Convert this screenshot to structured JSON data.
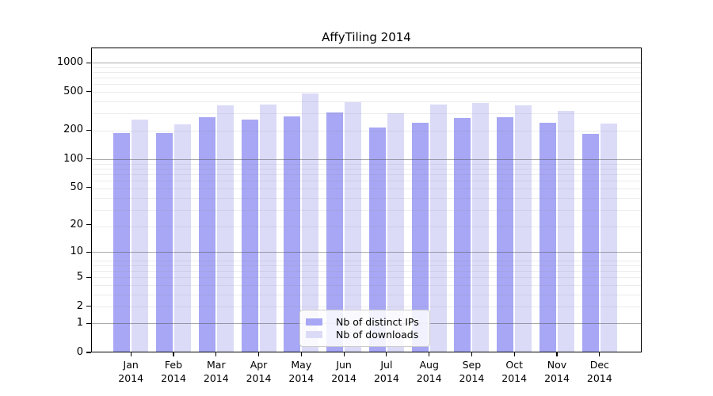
{
  "chart_data": {
    "type": "bar",
    "title": "AffyTiling 2014",
    "scale": "log1p",
    "grid": true,
    "legend_position": "lower center",
    "categories": [
      "Jan",
      "Feb",
      "Mar",
      "Apr",
      "May",
      "Jun",
      "Jul",
      "Aug",
      "Sep",
      "Oct",
      "Nov",
      "Dec"
    ],
    "year_label": "2014",
    "series": [
      {
        "name": "Nb of distinct IPs",
        "color": "#a7a7f5",
        "values": [
          185,
          185,
          270,
          255,
          280,
          307,
          214,
          238,
          265,
          270,
          238,
          182
        ]
      },
      {
        "name": "Nb of downloads",
        "color": "#dbdbf8",
        "values": [
          255,
          228,
          365,
          370,
          485,
          390,
          300,
          370,
          380,
          365,
          320,
          235
        ]
      }
    ],
    "y_ticks": [
      0,
      1,
      2,
      5,
      10,
      20,
      50,
      100,
      200,
      500,
      1000
    ],
    "y_major_gridlines": [
      1,
      10,
      100,
      1000
    ],
    "ylim": [
      0,
      1440
    ],
    "xlabel": "",
    "ylabel": ""
  }
}
